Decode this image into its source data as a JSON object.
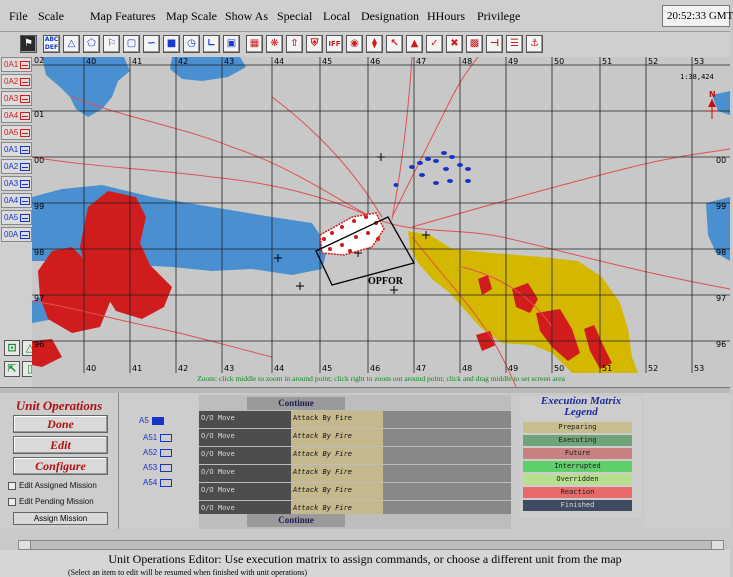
{
  "menu": {
    "items": [
      "File",
      "Scale",
      "Map Features",
      "Map Scale",
      "Show As",
      "Special",
      "Local",
      "Designation",
      "HHours",
      "Privilege"
    ],
    "clock": "20:52:33 GMT"
  },
  "toolbar": {
    "icons": [
      "flag-icon",
      "dfr-icon",
      "triangle-icon",
      "pentagon-icon",
      "flag-marker-icon",
      "unit-icon",
      "line-curve-icon",
      "fill-rect-icon",
      "clock-icon",
      "arc-icon",
      "text-box-icon",
      "grid-icon",
      "burst-icon",
      "arrow-up-icon",
      "flag-stand-icon",
      "iff-icon",
      "camera-icon",
      "ambush-icon",
      "chevron-icon",
      "warning-triangle-icon",
      "checkmark-icon",
      "crossed-arrows-icon",
      "vehicle-icon",
      "link-icon",
      "bars-icon",
      "anchor-icon"
    ],
    "iff_label": "IFF",
    "dfr_label": "ABC DEF"
  },
  "units": [
    {
      "label": "0A1",
      "color": "red"
    },
    {
      "label": "0A2",
      "color": "red"
    },
    {
      "label": "0A3",
      "color": "red"
    },
    {
      "label": "0A4",
      "color": "red"
    },
    {
      "label": "0A5",
      "color": "red"
    },
    {
      "label": "0A1",
      "color": "blue"
    },
    {
      "label": "0A2",
      "color": "blue"
    },
    {
      "label": "0A3",
      "color": "blue"
    },
    {
      "label": "0A4",
      "color": "blue"
    },
    {
      "label": "0A5",
      "color": "blue"
    },
    {
      "label": "00A",
      "color": "blue"
    }
  ],
  "map": {
    "x_labels": [
      "40",
      "41",
      "42",
      "43",
      "44",
      "45",
      "46",
      "47",
      "48",
      "49",
      "50",
      "51",
      "52",
      "53"
    ],
    "x_labels_bottom": [
      "40",
      "41",
      "42",
      "43",
      "44",
      "45",
      "46",
      "47",
      "48",
      "49",
      "50",
      "51",
      "52",
      "53"
    ],
    "y_labels": [
      "02",
      "01",
      "00",
      "99",
      "98",
      "97",
      "96"
    ],
    "scale": "1:38,424",
    "north": "N",
    "opfor": "OPFOR",
    "zoom_hint": "Zoom: click middle to zoom in around point; click right to zoom out around point; click and drag middle to set screen area"
  },
  "ops": {
    "title": "Unit Operations",
    "done": "Done",
    "edit": "Edit",
    "configure": "Configure",
    "edit_assigned": "Edit Assigned Mission",
    "edit_pending": "Edit Pending Mission",
    "assign": "Assign Mission"
  },
  "tree": {
    "root": "A5",
    "children": [
      "A51",
      "A52",
      "A53",
      "A54"
    ]
  },
  "matrix": {
    "continue_top": "Continue",
    "continue_bottom": "Continue",
    "rows": [
      {
        "a": "O/O Move",
        "b": "Attack By Fire"
      },
      {
        "a": "O/O Move",
        "b": "Attack By Fire"
      },
      {
        "a": "O/O Move",
        "b": "Attack By Fire"
      },
      {
        "a": "O/O Move",
        "b": "Attack By Fire"
      },
      {
        "a": "O/O Move",
        "b": "Attack By Fire"
      },
      {
        "a": "O/O Move",
        "b": "Attack By Fire"
      }
    ]
  },
  "legend": {
    "title_line1": "Execution Matrix",
    "title_line2": "Legend",
    "items": [
      {
        "label": "Preparing",
        "color": "#c8bd8c"
      },
      {
        "label": "Executing",
        "color": "#6fa37a"
      },
      {
        "label": "Future",
        "color": "#c88080"
      },
      {
        "label": "Interrupted",
        "color": "#5fcf6a"
      },
      {
        "label": "Overridden",
        "color": "#b6e08f"
      },
      {
        "label": "Reaction",
        "color": "#e86a6a"
      },
      {
        "label": "Finished",
        "color": "#3f4a63"
      }
    ]
  },
  "status": {
    "main": "Unit Operations Editor: Use execution matrix to assign commands, or choose a different unit from the map",
    "sub": "(Select an item to edit will be resumed when finished with unit operations)"
  },
  "colors": {
    "map_bg": "#c8c8c8",
    "water": "#4a90d0",
    "red_zone": "#d01c1c",
    "yellow_zone": "#d4b800",
    "grid": "#222222",
    "road": "#e05050"
  }
}
